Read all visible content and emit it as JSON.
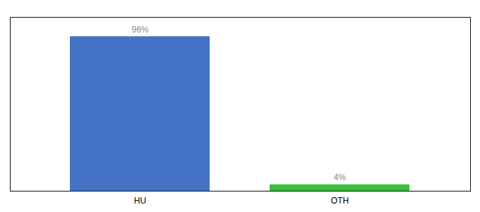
{
  "chart_data": {
    "type": "bar",
    "categories": [
      "HU",
      "OTH"
    ],
    "values": [
      96,
      4
    ],
    "value_labels": [
      "96%",
      "4%"
    ],
    "colors": [
      "#4472c4",
      "#3dbd3d"
    ],
    "ylim": [
      0,
      108
    ],
    "data_labels": true,
    "tick_labels": "x"
  }
}
